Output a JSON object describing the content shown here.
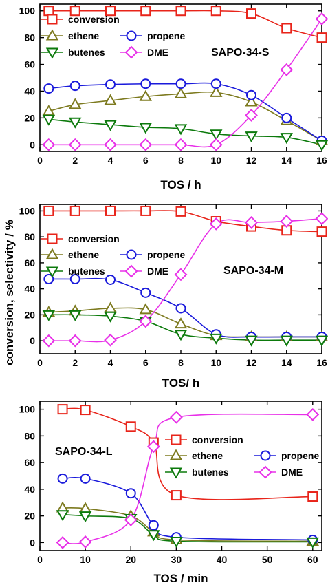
{
  "figure": {
    "ylabel": "conversion, selectivity / %",
    "colors": {
      "conversion": "#e8241a",
      "ethene": "#7d7a1f",
      "propene": "#1a1adb",
      "butenes": "#0c7a0c",
      "DME": "#e830e8"
    },
    "markers": {
      "conversion": "square",
      "ethene": "triangle-up",
      "propene": "circle",
      "butenes": "triangle-down",
      "DME": "diamond"
    }
  },
  "chart_data": [
    {
      "type": "line",
      "label": "SAPO-34-S",
      "xlabel": "TOS / h",
      "ylabel": "conversion, selectivity / %",
      "xlim": [
        0,
        16
      ],
      "ylim": [
        -5,
        105
      ],
      "xticks": [
        0,
        2,
        4,
        6,
        8,
        10,
        12,
        14,
        16
      ],
      "yticks": [
        0,
        20,
        40,
        60,
        80,
        100
      ],
      "legend_placement": "top-left",
      "series": [
        {
          "name": "conversion",
          "x": [
            0.5,
            2,
            4,
            6,
            8,
            10,
            12,
            14,
            16
          ],
          "values": [
            100,
            100,
            100,
            100,
            100,
            100,
            98,
            87,
            80
          ]
        },
        {
          "name": "ethene",
          "x": [
            0.5,
            2,
            4,
            6,
            8,
            10,
            12,
            14,
            16
          ],
          "values": [
            25,
            30,
            33,
            36,
            38,
            39,
            32,
            18,
            3
          ]
        },
        {
          "name": "propene",
          "x": [
            0.5,
            2,
            4,
            6,
            8,
            10,
            12,
            14,
            16
          ],
          "values": [
            42,
            44,
            45,
            45.5,
            45.5,
            45.5,
            37,
            20,
            3
          ]
        },
        {
          "name": "butenes",
          "x": [
            0.5,
            2,
            4,
            6,
            8,
            10,
            12,
            14,
            16
          ],
          "values": [
            19,
            17,
            15,
            13,
            12,
            8,
            6.5,
            5.5,
            0
          ]
        },
        {
          "name": "DME",
          "x": [
            0.5,
            2,
            4,
            6,
            8,
            10,
            12,
            14,
            16
          ],
          "values": [
            0,
            0,
            0,
            0,
            0,
            0,
            22,
            56,
            94
          ]
        }
      ]
    },
    {
      "type": "line",
      "label": "SAPO-34-M",
      "xlabel": "TOS/ h",
      "ylabel": "conversion, selectivity / %",
      "xlim": [
        0,
        16
      ],
      "ylim": [
        -10,
        105
      ],
      "xticks": [
        0,
        2,
        4,
        6,
        8,
        10,
        12,
        14,
        16
      ],
      "yticks": [
        0,
        20,
        40,
        60,
        80,
        100
      ],
      "legend_placement": "top-left",
      "series": [
        {
          "name": "conversion",
          "x": [
            0.5,
            2,
            4,
            6,
            8,
            10,
            12,
            14,
            16
          ],
          "values": [
            100,
            100,
            100,
            100,
            99.5,
            92,
            88,
            85,
            84
          ]
        },
        {
          "name": "ethene",
          "x": [
            0.5,
            2,
            4,
            6,
            8,
            10,
            12,
            14,
            16
          ],
          "values": [
            22,
            23,
            25,
            24,
            13,
            4,
            3,
            3,
            3
          ]
        },
        {
          "name": "propene",
          "x": [
            0.5,
            2,
            4,
            6,
            8,
            10,
            12,
            14,
            16
          ],
          "values": [
            47.5,
            47.5,
            47,
            37,
            25,
            5,
            3,
            3,
            3
          ]
        },
        {
          "name": "butenes",
          "x": [
            0.5,
            2,
            4,
            6,
            8,
            10,
            12,
            14,
            16
          ],
          "values": [
            20,
            20,
            19,
            15,
            5,
            2,
            0.5,
            0.5,
            0.5
          ]
        },
        {
          "name": "DME",
          "x": [
            0.5,
            2,
            4,
            6,
            8,
            10,
            12,
            14,
            16
          ],
          "values": [
            0,
            0,
            0.5,
            15,
            51,
            90,
            91,
            92,
            94
          ]
        }
      ]
    },
    {
      "type": "line",
      "label": "SAPO-34-L",
      "xlabel": "TOS / min",
      "ylabel": "conversion, selectivity / %",
      "xlim": [
        0,
        62
      ],
      "ylim": [
        -6,
        106
      ],
      "xticks": [
        0,
        10,
        20,
        30,
        40,
        50,
        60
      ],
      "yticks": [
        0,
        20,
        40,
        60,
        80,
        100
      ],
      "legend_placement": "center-right",
      "series": [
        {
          "name": "conversion",
          "x": [
            5,
            10,
            20,
            25,
            30,
            60
          ],
          "values": [
            100,
            99.5,
            87,
            75,
            35.5,
            34.5
          ]
        },
        {
          "name": "ethene",
          "x": [
            5,
            10,
            20,
            25,
            30,
            60
          ],
          "values": [
            26,
            25.5,
            20,
            8,
            2,
            1
          ]
        },
        {
          "name": "propene",
          "x": [
            5,
            10,
            20,
            25,
            30,
            60
          ],
          "values": [
            48,
            48,
            37,
            13,
            4,
            2
          ]
        },
        {
          "name": "butenes",
          "x": [
            5,
            10,
            20,
            25,
            30,
            60
          ],
          "values": [
            21,
            20,
            18,
            6,
            1,
            0.5
          ]
        },
        {
          "name": "DME",
          "x": [
            5,
            10,
            20,
            25,
            30,
            60
          ],
          "values": [
            0,
            0.5,
            17,
            72,
            94,
            96
          ]
        }
      ]
    }
  ]
}
